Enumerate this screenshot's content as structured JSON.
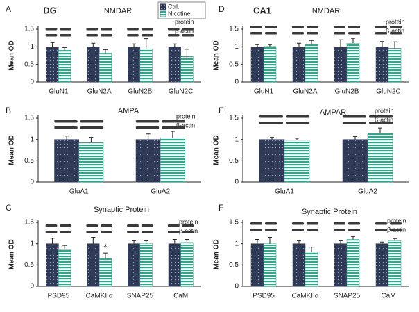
{
  "chart_data": [
    {
      "type": "bar",
      "panel": "A",
      "region": "DG",
      "title": "NMDAR",
      "ylabel": "Mean OD",
      "blot_labels": [
        "protein",
        "β-actin"
      ],
      "categories": [
        "GluN1",
        "GluN2A",
        "GluN2B",
        "GluN2C"
      ],
      "series": [
        {
          "name": "Ctrl.",
          "color": "#2f3a57",
          "pattern": "dots",
          "values": [
            1,
            1,
            1,
            1
          ],
          "errors": [
            0.12,
            0.1,
            0.08,
            0.08
          ]
        },
        {
          "name": "Nicotine",
          "color": "#35a58c",
          "pattern": "stripes",
          "values": [
            0.9,
            0.82,
            0.93,
            0.73
          ],
          "errors": [
            0.08,
            0.1,
            0.3,
            0.2
          ]
        }
      ],
      "ylim": [
        0,
        1.5
      ],
      "yticks": [
        0,
        0.5,
        1,
        1.5
      ]
    },
    {
      "type": "bar",
      "panel": "B",
      "title": "AMPA",
      "ylabel": "Mean OD",
      "blot_labels": [
        "protein",
        "β-actin"
      ],
      "categories": [
        "GluA1",
        "GluA2"
      ],
      "series": [
        {
          "color": "#2f3a57",
          "pattern": "dots",
          "values": [
            1,
            1
          ],
          "errors": [
            0.08,
            0.13
          ]
        },
        {
          "color": "#35a58c",
          "pattern": "stripes",
          "values": [
            0.93,
            1.04
          ],
          "errors": [
            0.12,
            0.15
          ]
        }
      ],
      "ylim": [
        0,
        1.5
      ],
      "yticks": [
        0,
        0.5,
        1,
        1.5
      ]
    },
    {
      "type": "bar",
      "panel": "C",
      "title": "Synaptic Protein",
      "ylabel": "Mean OD",
      "blot_labels": [
        "protein",
        "β-actin"
      ],
      "categories": [
        "PSD95",
        "CaMKIIα",
        "SNAP25",
        "CaM"
      ],
      "series": [
        {
          "color": "#2f3a57",
          "pattern": "dots",
          "values": [
            1,
            1,
            1,
            1
          ],
          "errors": [
            0.13,
            0.15,
            0.07,
            0.1
          ]
        },
        {
          "color": "#35a58c",
          "pattern": "stripes",
          "values": [
            0.86,
            0.65,
            1.0,
            1.03
          ],
          "errors": [
            0.1,
            0.13,
            0.07,
            0.07
          ],
          "markers": [
            null,
            "*",
            null,
            null
          ]
        }
      ],
      "ylim": [
        0,
        1.5
      ],
      "yticks": [
        0,
        0.5,
        1,
        1.5
      ]
    },
    {
      "type": "bar",
      "panel": "D",
      "region": "CA1",
      "title": "NMDAR",
      "ylabel": "Mean OD",
      "blot_labels": [
        "protein",
        "β-actin"
      ],
      "categories": [
        "GluN1",
        "GluN2A",
        "GluN2B",
        "GluN2C"
      ],
      "series": [
        {
          "color": "#2f3a57",
          "pattern": "dots",
          "values": [
            1,
            1,
            1,
            1
          ],
          "errors": [
            0.06,
            0.1,
            0.2,
            0.15
          ]
        },
        {
          "color": "#35a58c",
          "pattern": "stripes",
          "values": [
            1.01,
            1.06,
            1.1,
            0.96
          ],
          "errors": [
            0.05,
            0.12,
            0.14,
            0.18
          ]
        }
      ],
      "ylim": [
        0,
        1.5
      ],
      "yticks": [
        0,
        0.5,
        1,
        1.5
      ]
    },
    {
      "type": "bar",
      "panel": "E",
      "title": "AMPAR",
      "ylabel": "Mean OD",
      "blot_labels": [
        "protein",
        "β-actin"
      ],
      "categories": [
        "GluA1",
        "GluA2"
      ],
      "series": [
        {
          "color": "#2f3a57",
          "pattern": "dots",
          "values": [
            1,
            1
          ],
          "errors": [
            0.05,
            0.07
          ]
        },
        {
          "color": "#35a58c",
          "pattern": "stripes",
          "values": [
            0.99,
            1.15
          ],
          "errors": [
            0.04,
            0.12
          ]
        }
      ],
      "ylim": [
        0,
        1.5
      ],
      "yticks": [
        0,
        0.5,
        1,
        1.5
      ]
    },
    {
      "type": "bar",
      "panel": "F",
      "title": "Synaptic Protein",
      "ylabel": "Mean OD",
      "blot_labels": [
        "protein",
        "β-actin"
      ],
      "categories": [
        "PSD95",
        "CaMKIIα",
        "SNAP25",
        "CaM"
      ],
      "series": [
        {
          "color": "#2f3a57",
          "pattern": "dots",
          "values": [
            1,
            1,
            1,
            1
          ],
          "errors": [
            0.1,
            0.07,
            0.07,
            0.04
          ]
        },
        {
          "color": "#35a58c",
          "pattern": "stripes",
          "values": [
            1.0,
            0.8,
            1.1,
            1.07
          ],
          "errors": [
            0.15,
            0.12,
            0.07,
            0.05
          ]
        }
      ],
      "ylim": [
        0,
        1.5
      ],
      "yticks": [
        0,
        0.5,
        1,
        1.5
      ]
    }
  ]
}
